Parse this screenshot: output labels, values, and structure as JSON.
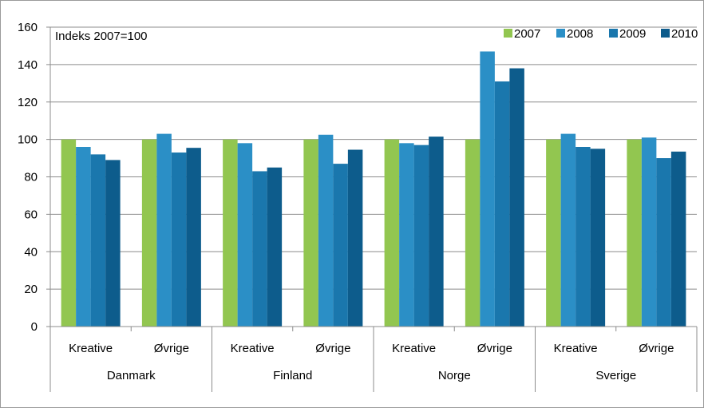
{
  "chart_data": {
    "type": "bar",
    "annotation": "Indeks 2007=100",
    "groups": [
      "Danmark",
      "Finland",
      "Norge",
      "Sverige"
    ],
    "subcategories": [
      "Kreative",
      "Øvrige"
    ],
    "categories": [
      "Danmark Kreative",
      "Danmark Øvrige",
      "Finland Kreative",
      "Finland Øvrige",
      "Norge Kreative",
      "Norge Øvrige",
      "Sverige Kreative",
      "Sverige Øvrige"
    ],
    "series": [
      {
        "name": "2007",
        "color": "#92c650",
        "values": [
          100,
          100,
          100,
          100,
          100,
          100,
          100,
          100
        ]
      },
      {
        "name": "2008",
        "color": "#2b8fc6",
        "values": [
          96,
          103,
          98,
          102.5,
          98,
          147,
          103,
          101
        ]
      },
      {
        "name": "2009",
        "color": "#1a77ad",
        "values": [
          92,
          93,
          83,
          87,
          97,
          131,
          96,
          90
        ]
      },
      {
        "name": "2010",
        "color": "#0d5c8c",
        "values": [
          89,
          95.5,
          85,
          94.5,
          101.5,
          138,
          95,
          93.5
        ]
      }
    ],
    "ylim": [
      0,
      160
    ],
    "yticks": [
      0,
      20,
      40,
      60,
      80,
      100,
      120,
      140,
      160
    ],
    "grid": true,
    "legend": "top-right"
  }
}
